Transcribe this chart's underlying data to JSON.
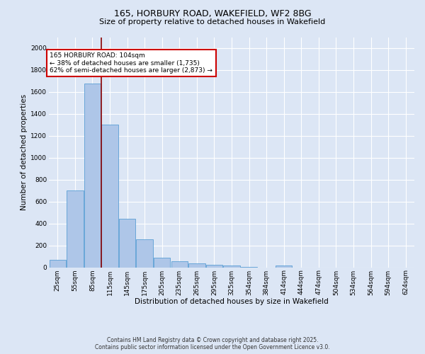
{
  "title_line1": "165, HORBURY ROAD, WAKEFIELD, WF2 8BG",
  "title_line2": "Size of property relative to detached houses in Wakefield",
  "xlabel": "Distribution of detached houses by size in Wakefield",
  "ylabel": "Number of detached properties",
  "categories": [
    "25sqm",
    "55sqm",
    "85sqm",
    "115sqm",
    "145sqm",
    "175sqm",
    "205sqm",
    "235sqm",
    "265sqm",
    "295sqm",
    "325sqm",
    "354sqm",
    "384sqm",
    "414sqm",
    "444sqm",
    "474sqm",
    "504sqm",
    "534sqm",
    "564sqm",
    "594sqm",
    "624sqm"
  ],
  "values": [
    65,
    700,
    1680,
    1300,
    440,
    255,
    90,
    55,
    35,
    20,
    15,
    5,
    0,
    15,
    0,
    0,
    0,
    0,
    0,
    0,
    0
  ],
  "bar_color": "#aec6e8",
  "bar_edge_color": "#5a9fd4",
  "bg_color": "#dce6f5",
  "grid_color": "#ffffff",
  "red_line_x": 2.5,
  "annotation_text": "165 HORBURY ROAD: 104sqm\n← 38% of detached houses are smaller (1,735)\n62% of semi-detached houses are larger (2,873) →",
  "annotation_box_color": "#ffffff",
  "annotation_border_color": "#cc0000",
  "ylim": [
    0,
    2100
  ],
  "yticks": [
    0,
    200,
    400,
    600,
    800,
    1000,
    1200,
    1400,
    1600,
    1800,
    2000
  ],
  "footer_line1": "Contains HM Land Registry data © Crown copyright and database right 2025.",
  "footer_line2": "Contains public sector information licensed under the Open Government Licence v3.0.",
  "title_fontsize": 9,
  "subtitle_fontsize": 8,
  "axis_label_fontsize": 7.5,
  "tick_fontsize": 6.5,
  "annotation_fontsize": 6.5,
  "footer_fontsize": 5.5
}
